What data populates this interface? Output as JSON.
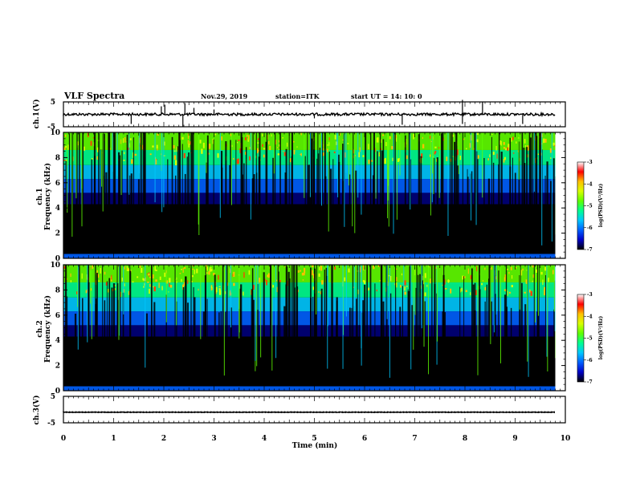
{
  "header": {
    "title": "VLF Spectra",
    "date": "Nov.29, 2019",
    "station": "station=ITK",
    "start": "start  UT =   14: 10: 0"
  },
  "chart_data": [
    {
      "type": "line",
      "ylabel": "ch.1(V)",
      "ylim": [
        -5,
        5
      ],
      "yticks": [
        "5",
        "-5"
      ],
      "baseline": 0
    },
    {
      "type": "heatmap",
      "ylabel_top": "ch.1",
      "ylabel": "Frequency  (kHz)",
      "ylim": [
        0,
        10
      ],
      "yticks": [
        "0",
        "2",
        "4",
        "6",
        "8",
        "10"
      ],
      "colorbar": {
        "label": "log(PSD)(V²/Hz)",
        "range": [
          -7,
          -3
        ],
        "ticks": [
          "-3",
          "-4",
          "-5",
          "-6",
          "-7"
        ]
      }
    },
    {
      "type": "heatmap",
      "ylabel_top": "ch.2",
      "ylabel": "Frequency  (kHz)",
      "ylim": [
        0,
        10
      ],
      "yticks": [
        "0",
        "2",
        "4",
        "6",
        "8",
        "10"
      ],
      "colorbar": {
        "label": "log(PSD)(V²/Hz)",
        "range": [
          -7,
          -3
        ],
        "ticks": [
          "-3",
          "-4",
          "-5",
          "-6",
          "-7"
        ]
      }
    },
    {
      "type": "line",
      "ylabel": "ch.3(V)",
      "ylim": [
        -5,
        5
      ],
      "yticks": [
        "5",
        "-5"
      ],
      "baseline": -1.0
    }
  ],
  "xaxis": {
    "label": "Time  (min)",
    "range": [
      0,
      10
    ],
    "ticks": [
      "0",
      "1",
      "2",
      "3",
      "4",
      "5",
      "6",
      "7",
      "8",
      "9",
      "10"
    ],
    "data_end": 9.8
  },
  "colors": {
    "black": "#000000",
    "spectral": [
      "#000000",
      "#0000c8",
      "#0060ff",
      "#00c8ff",
      "#00ff90",
      "#60ff00",
      "#d8ff00",
      "#ffc000",
      "#ff4000",
      "#ff0000",
      "#ffffff"
    ]
  }
}
